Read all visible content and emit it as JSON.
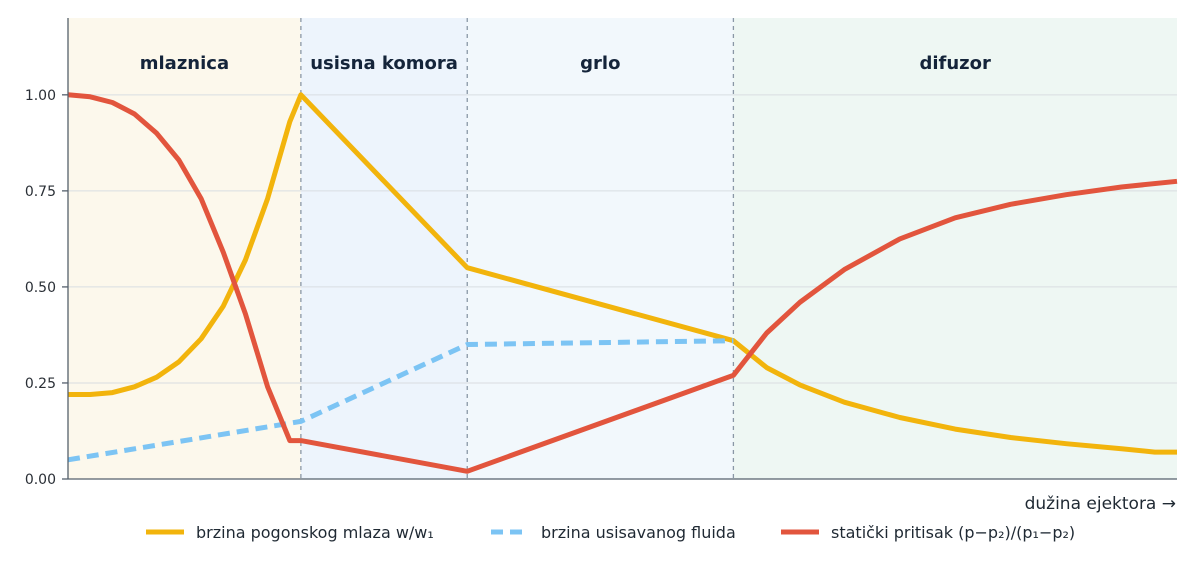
{
  "chart_data": {
    "type": "line",
    "title": "",
    "xlabel": "dužina ejektora →",
    "ylabel": "",
    "xlim": [
      0,
      1
    ],
    "ylim": [
      0,
      1.2
    ],
    "yticks": [
      0,
      0.25,
      0.5,
      0.75,
      1.0
    ],
    "ytick_labels": [
      "0.00",
      "0.25",
      "0.50",
      "0.75",
      "1.00"
    ],
    "grid": "horizontal",
    "legend_position": "bottom",
    "regions": [
      {
        "name": "mlaznica",
        "start": 0.0,
        "end": 0.21,
        "color": "#fcf8ec"
      },
      {
        "name": "usisna komora",
        "start": 0.21,
        "end": 0.36,
        "color": "#edf4fc"
      },
      {
        "name": "grlo",
        "start": 0.36,
        "end": 0.6,
        "color": "#f2f8fc"
      },
      {
        "name": "difuzor",
        "start": 0.6,
        "end": 1.0,
        "color": "#eef7f3"
      }
    ],
    "series": [
      {
        "name": "brzina pogonskog mlaza  w/w₁",
        "color": "#f2b40c",
        "style": "solid",
        "x": [
          0,
          0.02,
          0.04,
          0.06,
          0.08,
          0.1,
          0.12,
          0.14,
          0.16,
          0.18,
          0.2,
          0.21,
          0.36,
          0.6,
          0.63,
          0.66,
          0.7,
          0.75,
          0.8,
          0.85,
          0.9,
          0.95,
          0.98,
          1.0
        ],
        "y": [
          0.22,
          0.22,
          0.225,
          0.24,
          0.265,
          0.305,
          0.365,
          0.45,
          0.57,
          0.73,
          0.93,
          1.0,
          0.55,
          0.36,
          0.29,
          0.245,
          0.2,
          0.16,
          0.13,
          0.108,
          0.092,
          0.079,
          0.07,
          0.07
        ]
      },
      {
        "name": "brzina usisavanog fluida",
        "color": "#7cc4f4",
        "style": "dashed",
        "x": [
          0,
          0.21,
          0.36,
          0.6
        ],
        "y": [
          0.05,
          0.15,
          0.35,
          0.36
        ]
      },
      {
        "name": "statički pritisak  (p−p₂)/(p₁−p₂)",
        "color": "#e2553d",
        "style": "solid",
        "x": [
          0,
          0.02,
          0.04,
          0.06,
          0.08,
          0.1,
          0.12,
          0.14,
          0.16,
          0.18,
          0.2,
          0.21,
          0.36,
          0.6,
          0.63,
          0.66,
          0.7,
          0.75,
          0.8,
          0.85,
          0.9,
          0.95,
          1.0
        ],
        "y": [
          1.0,
          0.995,
          0.98,
          0.95,
          0.9,
          0.83,
          0.73,
          0.59,
          0.43,
          0.24,
          0.1,
          0.1,
          0.02,
          0.27,
          0.38,
          0.46,
          0.545,
          0.625,
          0.68,
          0.715,
          0.74,
          0.76,
          0.775
        ]
      }
    ]
  }
}
